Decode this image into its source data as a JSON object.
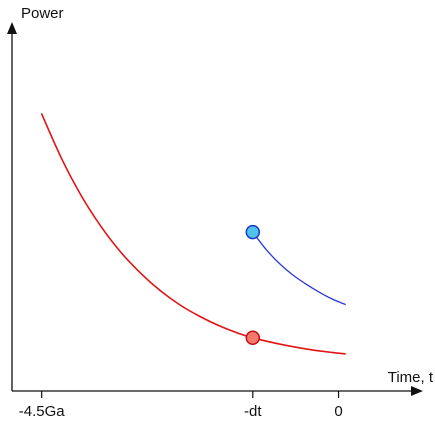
{
  "chart_data": {
    "type": "line",
    "title": "",
    "xlabel": "Time, t",
    "ylabel": "Power",
    "x_ticks": [
      {
        "label": "-4.5Ga",
        "value": -4.5
      },
      {
        "label": "-dt",
        "value": -1.3
      },
      {
        "label": "0",
        "value": 0
      }
    ],
    "xlim": [
      -4.95,
      1.25
    ],
    "ylim": [
      0,
      10
    ],
    "grid": false,
    "legend": "none",
    "series": [
      {
        "color": "#e11414",
        "line_width": 1.6,
        "x": [
          -4.5,
          -4.2,
          -3.9,
          -3.6,
          -3.3,
          -3.0,
          -2.7,
          -2.4,
          -2.1,
          -1.8,
          -1.5,
          -1.3,
          -1.0,
          -0.7,
          -0.4,
          -0.1,
          0.1
        ],
        "y": [
          7.55,
          6.34,
          5.32,
          4.48,
          3.78,
          3.21,
          2.73,
          2.34,
          2.03,
          1.77,
          1.56,
          1.45,
          1.32,
          1.21,
          1.12,
          1.05,
          1.01
        ]
      },
      {
        "color": "#2a3ad8",
        "line_width": 1.3,
        "x": [
          -1.3,
          -1.1,
          -0.9,
          -0.7,
          -0.5,
          -0.3,
          -0.1,
          0.1
        ],
        "y": [
          4.33,
          3.86,
          3.48,
          3.17,
          2.92,
          2.7,
          2.51,
          2.36
        ]
      }
    ],
    "markers": [
      {
        "x": -1.3,
        "y": 1.45,
        "fill": "#f57a6e",
        "stroke": "#c41010"
      },
      {
        "x": -1.3,
        "y": 4.33,
        "fill": "#4ec3ec",
        "stroke": "#1f35c8"
      }
    ]
  }
}
